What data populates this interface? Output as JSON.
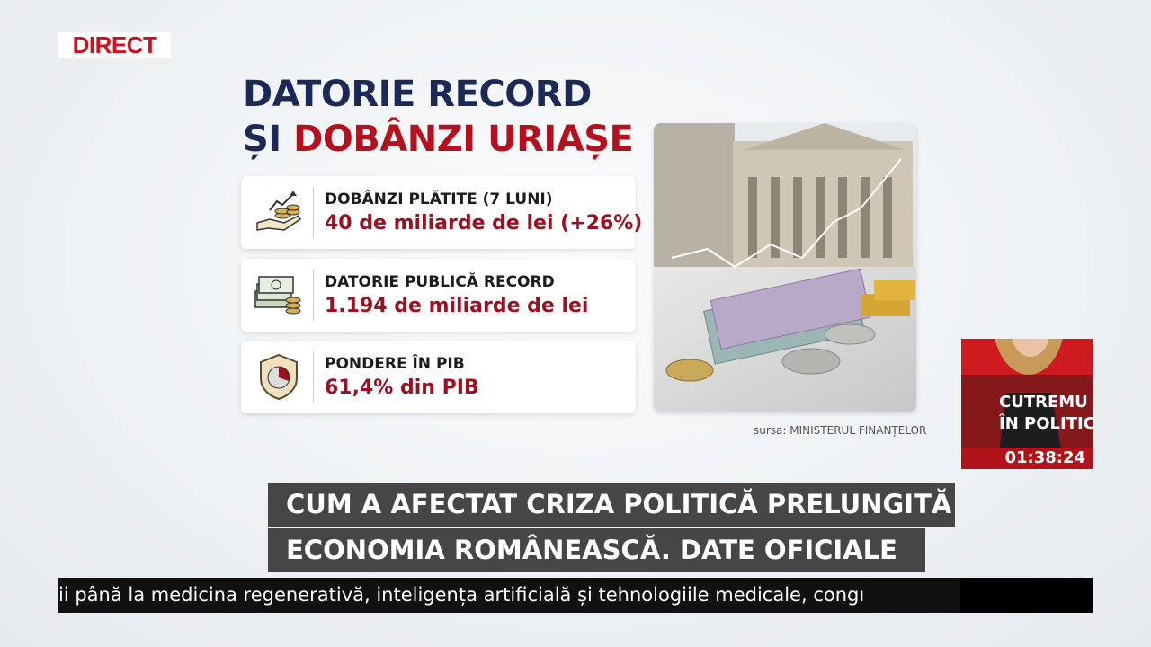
{
  "header": {
    "live_badge": "DIRECT"
  },
  "infographic": {
    "title_line1": "DATORIE RECORD",
    "title_line2_prefix": "ȘI",
    "title_line2_highlight": "DOBÂNZI URIAȘE",
    "cards": [
      {
        "label": "DOBÂNZI PLĂTITE (7 LUNI)",
        "value": "40 de miliarde de lei (+26%)"
      },
      {
        "label": "DATORIE PUBLICĂ RECORD",
        "value": "1.194 de miliarde de lei"
      },
      {
        "label": "PONDERE ÎN PIB",
        "value": "61,4% din PIB"
      }
    ],
    "source": "sursa: MINISTERUL FINANȚELOR"
  },
  "presenter_inset": {
    "caption_line1": "CUTREMU",
    "caption_line2": "ÎN POLITICĂ",
    "clock": "01:38:24"
  },
  "headline": {
    "lines": [
      "CUM A AFECTAT CRIZA POLITICĂ PRELUNGITĂ",
      "ECONOMIA ROMÂNEASCĂ. DATE OFICIALE"
    ]
  },
  "ticker": {
    "text": "ii până la medicina regenerativă, inteligența artificială și tehnologiile medicale, congı"
  }
}
